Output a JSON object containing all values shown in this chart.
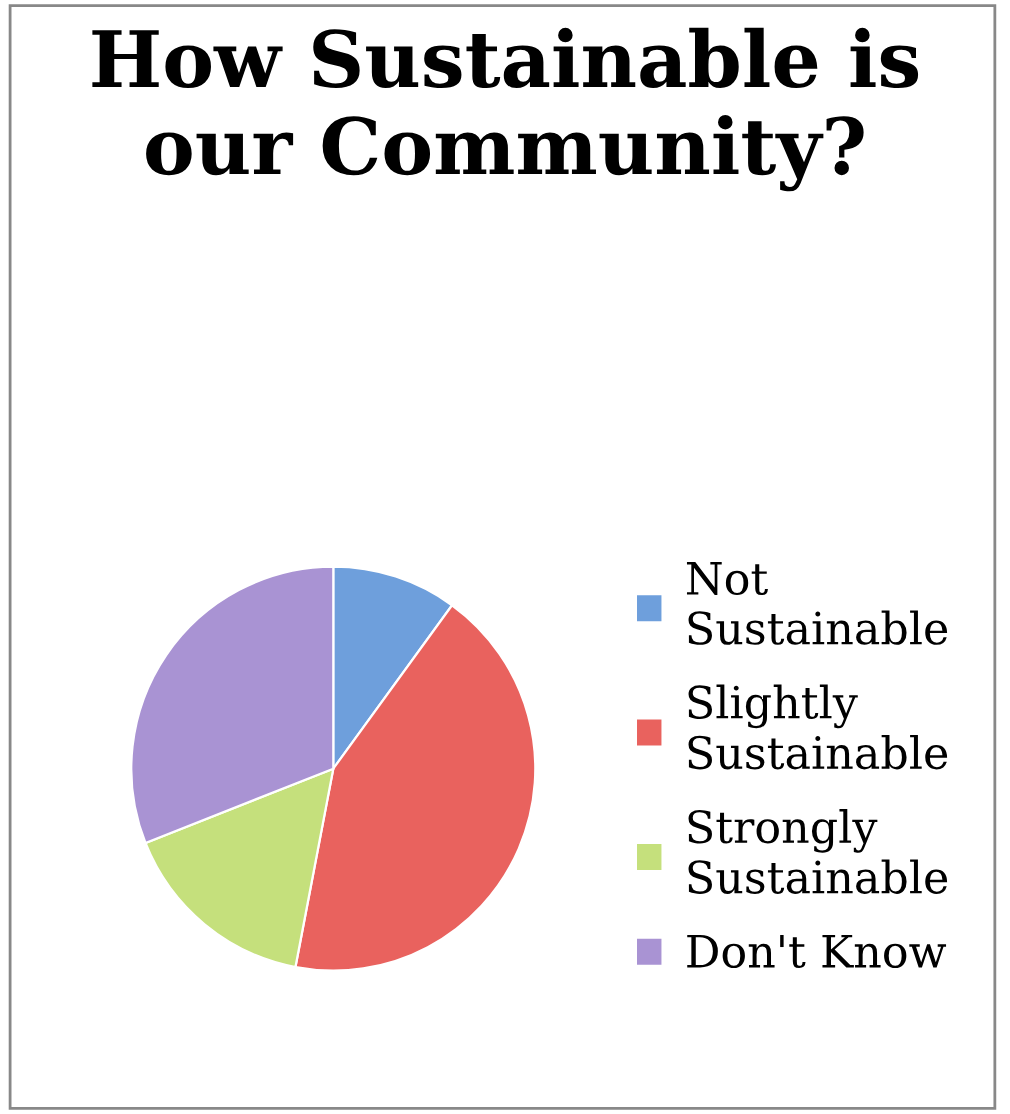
{
  "chart_data": {
    "type": "pie",
    "title": "How Sustainable is our Community?",
    "categories": [
      "Not Sustainable",
      "Slightly Sustainable",
      "Strongly Sustainable",
      "Don't Know"
    ],
    "values": [
      10,
      43,
      16,
      31
    ],
    "colors": [
      "#6e9fdc",
      "#e9625e",
      "#c5e07c",
      "#a993d3"
    ],
    "legend": "right"
  }
}
